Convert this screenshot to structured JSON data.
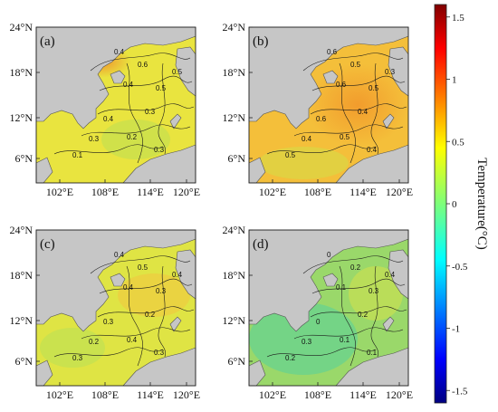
{
  "panels": [
    {
      "label": "(a)",
      "contour_labels": [
        "0.4",
        "0.6",
        "0.5",
        "0.4",
        "0.3",
        "0.4",
        "0.2",
        "0.3",
        "0.1",
        "0.3",
        "0.5"
      ],
      "tint": "#e9e43f"
    },
    {
      "label": "(b)",
      "contour_labels": [
        "0.6",
        "0.5",
        "0.5",
        "0.6",
        "0.4",
        "0.6",
        "0.5",
        "0.4",
        "0.5",
        "0.4",
        "0.3"
      ],
      "tint": "#f4bf3a"
    },
    {
      "label": "(c)",
      "contour_labels": [
        "0.4",
        "0.5",
        "0.3",
        "0.4",
        "0.2",
        "0.3",
        "0.4",
        "0.2",
        "0.3",
        "0.3",
        "0.4"
      ],
      "tint": "#dfe444"
    },
    {
      "label": "(d)",
      "contour_labels": [
        "0",
        "0.2",
        "0.3",
        "0.1",
        "0.2",
        "0",
        "0.1",
        "0.3",
        "0.2",
        "0.1",
        "0.4"
      ],
      "tint": "#9ad86a"
    }
  ],
  "axes": {
    "lat_ticks": [
      "24°N",
      "18°N",
      "12°N",
      "6°N"
    ],
    "lon_ticks": [
      "102°E",
      "108°E",
      "114°E",
      "120°E"
    ]
  },
  "colorbar": {
    "title": "Temperature(°C)",
    "ticks": [
      "1.5",
      "1",
      "0.5",
      "0",
      "-0.5",
      "-1",
      "-1.5"
    ],
    "tick_values": [
      1.5,
      1,
      0.5,
      0,
      -0.5,
      -1,
      -1.5
    ],
    "range": [
      -1.6,
      1.6
    ],
    "colormap": "jet"
  },
  "colors": {
    "land": "#c6c6c6",
    "contour": "#1a1a1a"
  }
}
